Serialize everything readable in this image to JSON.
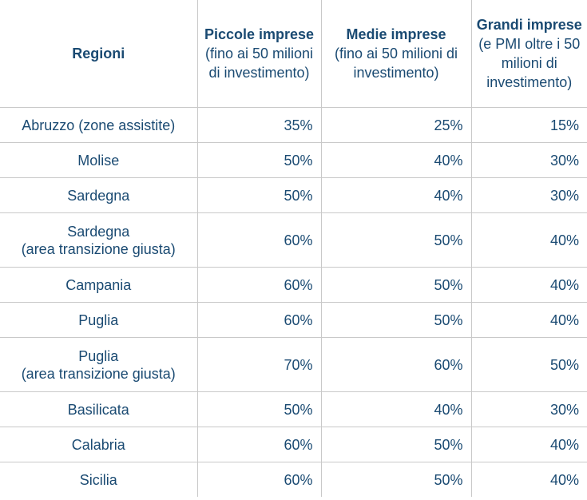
{
  "header": {
    "regioni": "Regioni",
    "piccole_title": "Piccole imprese",
    "piccole_sub": "(fino ai 50 milioni di investimento)",
    "medie_title": "Medie imprese",
    "medie_sub": "(fino ai 50 milioni di investimento)",
    "grandi_title": "Grandi imprese",
    "grandi_sub": "(e PMI oltre i 50 milioni di investimento)"
  },
  "rows": [
    {
      "region": "Abruzzo (zone assistite)",
      "region2": "",
      "piccole": "35%",
      "medie": "25%",
      "grandi": "15%"
    },
    {
      "region": "Molise",
      "region2": "",
      "piccole": "50%",
      "medie": "40%",
      "grandi": "30%"
    },
    {
      "region": "Sardegna",
      "region2": "",
      "piccole": "50%",
      "medie": "40%",
      "grandi": "30%"
    },
    {
      "region": "Sardegna",
      "region2": "(area transizione giusta)",
      "piccole": "60%",
      "medie": "50%",
      "grandi": "40%"
    },
    {
      "region": "Campania",
      "region2": "",
      "piccole": "60%",
      "medie": "50%",
      "grandi": "40%"
    },
    {
      "region": "Puglia",
      "region2": "",
      "piccole": "60%",
      "medie": "50%",
      "grandi": "40%"
    },
    {
      "region": "Puglia",
      "region2": "(area transizione giusta)",
      "piccole": "70%",
      "medie": "60%",
      "grandi": "50%"
    },
    {
      "region": "Basilicata",
      "region2": "",
      "piccole": "50%",
      "medie": "40%",
      "grandi": "30%"
    },
    {
      "region": "Calabria",
      "region2": "",
      "piccole": "60%",
      "medie": "50%",
      "grandi": "40%"
    },
    {
      "region": "Sicilia",
      "region2": "",
      "piccole": "60%",
      "medie": "50%",
      "grandi": "40%"
    }
  ]
}
